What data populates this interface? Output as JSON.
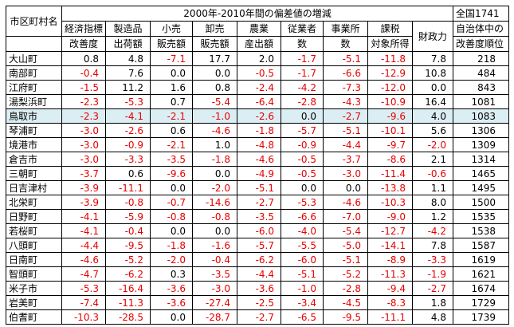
{
  "header": {
    "muni_label": "市区町村名",
    "group_label": "2000年-2010年間の偏差値の増減",
    "columns": [
      {
        "line1": "経済指標",
        "line2": "改善度"
      },
      {
        "line1": "製造品",
        "line2": "出荷額"
      },
      {
        "line1": "小売",
        "line2": "販売額"
      },
      {
        "line1": "卸売",
        "line2": "販売額"
      },
      {
        "line1": "農業",
        "line2": "産出額"
      },
      {
        "line1": "従業者",
        "line2": "数"
      },
      {
        "line1": "事業所",
        "line2": "数"
      },
      {
        "line1": "課税",
        "line2": "対象所得"
      },
      {
        "line1": "財政力",
        "line2": ""
      }
    ],
    "rank_label": [
      "全国1741",
      "自治体中の",
      "改善度順位"
    ]
  },
  "highlight_row_color": "#dbeef3",
  "negative_color": "#e60000",
  "rows": [
    {
      "name": "大山町",
      "values": [
        "0.8",
        "4.8",
        "-7.1",
        "17.7",
        "2.0",
        "-1.7",
        "-5.1",
        "-11.8",
        "7.8"
      ],
      "rank": "218"
    },
    {
      "name": "南部町",
      "values": [
        "-0.4",
        "7.6",
        "0.0",
        "0.0",
        "-0.5",
        "-1.7",
        "-6.6",
        "-12.9",
        "10.8"
      ],
      "rank": "484"
    },
    {
      "name": "江府町",
      "values": [
        "-1.5",
        "11.2",
        "1.6",
        "0.8",
        "-2.4",
        "-4.2",
        "-7.3",
        "-12.0",
        "0.0"
      ],
      "rank": "843"
    },
    {
      "name": "湯梨浜町",
      "values": [
        "-2.3",
        "-5.3",
        "0.7",
        "-5.4",
        "-6.4",
        "-2.8",
        "-4.3",
        "-10.9",
        "16.4"
      ],
      "rank": "1081"
    },
    {
      "name": "鳥取市",
      "values": [
        "-2.3",
        "-4.1",
        "-2.1",
        "-1.0",
        "-2.6",
        "0.0",
        "-2.7",
        "-9.6",
        "4.0"
      ],
      "rank": "1083",
      "highlight": true
    },
    {
      "name": "琴浦町",
      "values": [
        "-3.0",
        "-2.6",
        "0.6",
        "-4.6",
        "-1.8",
        "-5.7",
        "-5.1",
        "-10.1",
        "5.6"
      ],
      "rank": "1306"
    },
    {
      "name": "境港市",
      "values": [
        "-3.0",
        "-0.9",
        "-2.1",
        "1.0",
        "-4.8",
        "-0.9",
        "-4.4",
        "-9.7",
        "-2.0"
      ],
      "rank": "1309"
    },
    {
      "name": "倉吉市",
      "values": [
        "-3.0",
        "-3.3",
        "-3.5",
        "-1.8",
        "-4.6",
        "-0.5",
        "-3.7",
        "-8.6",
        "2.1"
      ],
      "rank": "1314"
    },
    {
      "name": "三朝町",
      "values": [
        "-3.7",
        "0.6",
        "-9.6",
        "0.0",
        "-4.9",
        "-0.5",
        "-3.0",
        "-11.4",
        "-0.6"
      ],
      "rank": "1465"
    },
    {
      "name": "日吉津村",
      "values": [
        "-3.9",
        "-11.1",
        "0.0",
        "-2.0",
        "-5.1",
        "0.0",
        "0.0",
        "-13.8",
        "1.1"
      ],
      "rank": "1495"
    },
    {
      "name": "北栄町",
      "values": [
        "-3.9",
        "-0.8",
        "-0.7",
        "-14.6",
        "-2.7",
        "-5.3",
        "-4.6",
        "-10.3",
        "8.0"
      ],
      "rank": "1500"
    },
    {
      "name": "日野町",
      "values": [
        "-4.1",
        "-5.9",
        "-0.8",
        "-0.8",
        "-3.5",
        "-6.6",
        "-7.0",
        "-9.0",
        "1.2"
      ],
      "rank": "1535"
    },
    {
      "name": "若桜町",
      "values": [
        "-4.1",
        "-0.4",
        "0.0",
        "0.0",
        "-6.0",
        "-4.0",
        "-5.4",
        "-12.7",
        "-4.2"
      ],
      "rank": "1538"
    },
    {
      "name": "八頭町",
      "values": [
        "-4.4",
        "-9.5",
        "-1.8",
        "-1.6",
        "-5.7",
        "-5.5",
        "-5.0",
        "-14.1",
        "7.8"
      ],
      "rank": "1587"
    },
    {
      "name": "日南町",
      "values": [
        "-4.6",
        "-5.2",
        "-2.0",
        "-0.4",
        "-6.2",
        "-6.0",
        "-5.1",
        "-8.9",
        "-3.3"
      ],
      "rank": "1619"
    },
    {
      "name": "智頭町",
      "values": [
        "-4.7",
        "-6.2",
        "0.3",
        "-3.5",
        "-4.4",
        "-5.1",
        "-5.2",
        "-11.3",
        "-1.9"
      ],
      "rank": "1621"
    },
    {
      "name": "米子市",
      "values": [
        "-5.3",
        "-16.4",
        "-3.6",
        "-3.0",
        "-3.6",
        "-1.0",
        "-2.8",
        "-9.4",
        "-2.7"
      ],
      "rank": "1674"
    },
    {
      "name": "岩美町",
      "values": [
        "-7.4",
        "-11.3",
        "-3.6",
        "-27.4",
        "-2.5",
        "-3.4",
        "-4.5",
        "-8.3",
        "1.8"
      ],
      "rank": "1729"
    },
    {
      "name": "伯耆町",
      "values": [
        "-10.3",
        "-28.5",
        "0.0",
        "-28.7",
        "-2.7",
        "-6.5",
        "-9.5",
        "-11.1",
        "4.8"
      ],
      "rank": "1739"
    }
  ]
}
